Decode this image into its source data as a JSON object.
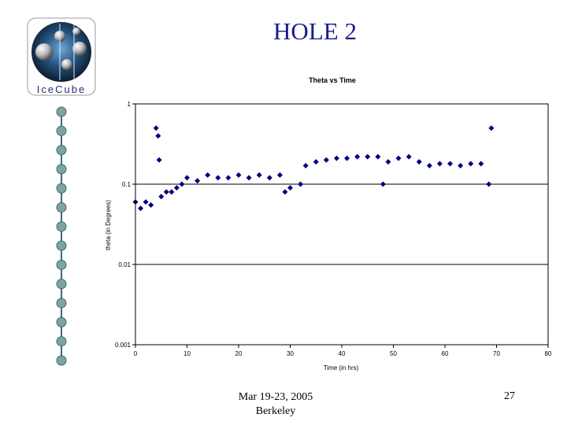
{
  "slide": {
    "title": "HOLE 2",
    "footer_date": "Mar 19-23, 2005",
    "footer_place": "Berkeley",
    "page_number": "27",
    "logo_text": "IceCube",
    "string_module_count": 14
  },
  "colors": {
    "title": "#1a1a8c",
    "series": "#000080",
    "axis": "#000000",
    "grid": "#000000",
    "string_node": "#7fa3a0",
    "string_line": "#3a6e6a"
  },
  "chart_data": {
    "type": "scatter",
    "title": "Theta vs Time",
    "xlabel": "Time (in hrs)",
    "ylabel": "theta (in Degrees)",
    "xlim": [
      0,
      80
    ],
    "ylim": [
      0.001,
      1
    ],
    "y_scale": "log",
    "xticks": [
      0,
      10,
      20,
      30,
      40,
      50,
      60,
      70,
      80
    ],
    "xtick_labels": [
      "0",
      "10",
      "20",
      "30",
      "40",
      "50",
      "60",
      "70",
      "80"
    ],
    "yticks": [
      1,
      0.1,
      0.01,
      0.001
    ],
    "ytick_labels": [
      "1",
      "0.1",
      "0.01",
      "0.001"
    ],
    "grid": "horizontal",
    "legend": "none",
    "series": [
      {
        "points": [
          [
            0,
            0.06
          ],
          [
            1,
            0.05
          ],
          [
            2,
            0.06
          ],
          [
            3,
            0.055
          ],
          [
            4,
            0.5
          ],
          [
            4.4,
            0.4
          ],
          [
            4.6,
            0.2
          ],
          [
            5,
            0.07
          ],
          [
            6,
            0.08
          ],
          [
            7,
            0.08
          ],
          [
            8,
            0.09
          ],
          [
            9,
            0.1
          ],
          [
            10,
            0.12
          ],
          [
            12,
            0.11
          ],
          [
            14,
            0.13
          ],
          [
            16,
            0.12
          ],
          [
            18,
            0.12
          ],
          [
            20,
            0.13
          ],
          [
            22,
            0.12
          ],
          [
            24,
            0.13
          ],
          [
            26,
            0.12
          ],
          [
            28,
            0.13
          ],
          [
            29,
            0.08
          ],
          [
            30,
            0.09
          ],
          [
            32,
            0.1
          ],
          [
            33,
            0.17
          ],
          [
            35,
            0.19
          ],
          [
            37,
            0.2
          ],
          [
            39,
            0.21
          ],
          [
            41,
            0.21
          ],
          [
            43,
            0.22
          ],
          [
            45,
            0.22
          ],
          [
            47,
            0.22
          ],
          [
            48,
            0.1
          ],
          [
            49,
            0.19
          ],
          [
            51,
            0.21
          ],
          [
            53,
            0.22
          ],
          [
            55,
            0.19
          ],
          [
            57,
            0.17
          ],
          [
            59,
            0.18
          ],
          [
            61,
            0.18
          ],
          [
            63,
            0.17
          ],
          [
            65,
            0.18
          ],
          [
            67,
            0.18
          ],
          [
            68.5,
            0.1
          ],
          [
            69,
            0.5
          ]
        ]
      }
    ]
  }
}
